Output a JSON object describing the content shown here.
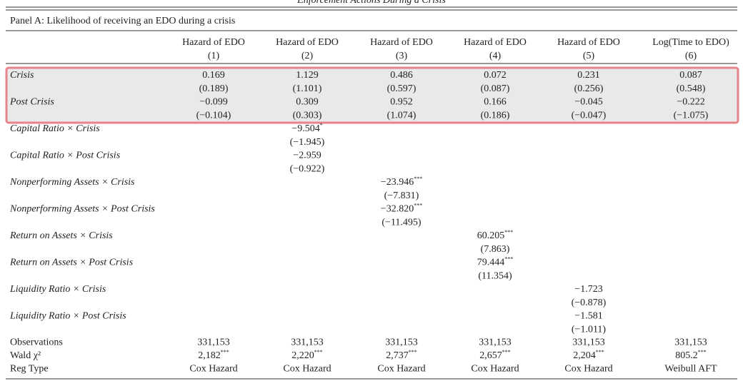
{
  "caption": "Enforcement Actions During a Crisis",
  "panel_title": "Panel A: Likelihood of receiving an EDO during a crisis",
  "columns": [
    {
      "title": "Hazard of EDO",
      "number": "(1)"
    },
    {
      "title": "Hazard of EDO",
      "number": "(2)"
    },
    {
      "title": "Hazard of EDO",
      "number": "(3)"
    },
    {
      "title": "Hazard of EDO",
      "number": "(4)"
    },
    {
      "title": "Hazard of EDO",
      "number": "(5)"
    },
    {
      "title": "Log(Time to EDO)",
      "number": "(6)"
    }
  ],
  "rows": [
    {
      "label": "Crisis",
      "cells": [
        {
          "coef": "0.169",
          "se": "(0.189)"
        },
        {
          "coef": "1.129",
          "se": "(1.101)"
        },
        {
          "coef": "0.486",
          "se": "(0.597)"
        },
        {
          "coef": "0.072",
          "se": "(0.087)"
        },
        {
          "coef": "0.231",
          "se": "(0.256)"
        },
        {
          "coef": "0.087",
          "se": "(0.548)"
        }
      ]
    },
    {
      "label": "Post Crisis",
      "cells": [
        {
          "coef": "−0.099",
          "se": "(−0.104)"
        },
        {
          "coef": "0.309",
          "se": "(0.303)"
        },
        {
          "coef": "0.952",
          "se": "(1.074)"
        },
        {
          "coef": "0.166",
          "se": "(0.186)"
        },
        {
          "coef": "−0.045",
          "se": "(−0.047)"
        },
        {
          "coef": "−0.222",
          "se": "(−1.075)"
        }
      ]
    },
    {
      "label": "Capital Ratio × Crisis",
      "cells": [
        null,
        {
          "coef": "−9.504",
          "stars": "*",
          "se": "(−1.945)"
        },
        null,
        null,
        null,
        null
      ]
    },
    {
      "label": "Capital Ratio × Post Crisis",
      "cells": [
        null,
        {
          "coef": "−2.959",
          "se": "(−0.922)"
        },
        null,
        null,
        null,
        null
      ]
    },
    {
      "label": "Nonperforming Assets × Crisis",
      "cells": [
        null,
        null,
        {
          "coef": "−23.946",
          "stars": "***",
          "se": "(−7.831)"
        },
        null,
        null,
        null
      ]
    },
    {
      "label": "Nonperforming Assets × Post Crisis",
      "cells": [
        null,
        null,
        {
          "coef": "−32.820",
          "stars": "***",
          "se": "(−11.495)"
        },
        null,
        null,
        null
      ]
    },
    {
      "label": "Return on Assets × Crisis",
      "cells": [
        null,
        null,
        null,
        {
          "coef": "60.205",
          "stars": "***",
          "se": "(7.863)"
        },
        null,
        null
      ]
    },
    {
      "label": "Return on Assets × Post Crisis",
      "cells": [
        null,
        null,
        null,
        {
          "coef": "79.444",
          "stars": "***",
          "se": "(11.354)"
        },
        null,
        null
      ]
    },
    {
      "label": "Liquidity Ratio × Crisis",
      "cells": [
        null,
        null,
        null,
        null,
        {
          "coef": "−1.723",
          "se": "(−0.878)"
        },
        null
      ]
    },
    {
      "label": "Liquidity Ratio × Post Crisis",
      "cells": [
        null,
        null,
        null,
        null,
        {
          "coef": "−1.581",
          "se": "(−1.011)"
        },
        null
      ]
    }
  ],
  "stats": [
    {
      "label": "Observations",
      "cells": [
        {
          "value": "331,153"
        },
        {
          "value": "331,153"
        },
        {
          "value": "331,153"
        },
        {
          "value": "331,153"
        },
        {
          "value": "331,153"
        },
        {
          "value": "331,153"
        }
      ]
    },
    {
      "label": "Wald χ²",
      "cells": [
        {
          "value": "2,182",
          "stars": "***"
        },
        {
          "value": "2,220",
          "stars": "***"
        },
        {
          "value": "2,737",
          "stars": "***"
        },
        {
          "value": "2,657",
          "stars": "***"
        },
        {
          "value": "2,204",
          "stars": "***"
        },
        {
          "value": "805.2",
          "stars": "***"
        }
      ]
    },
    {
      "label": "Reg Type",
      "cells": [
        {
          "value": "Cox Hazard"
        },
        {
          "value": "Cox Hazard"
        },
        {
          "value": "Cox Hazard"
        },
        {
          "value": "Cox Hazard"
        },
        {
          "value": "Cox Hazard"
        },
        {
          "value": "Weibull AFT"
        }
      ]
    }
  ]
}
